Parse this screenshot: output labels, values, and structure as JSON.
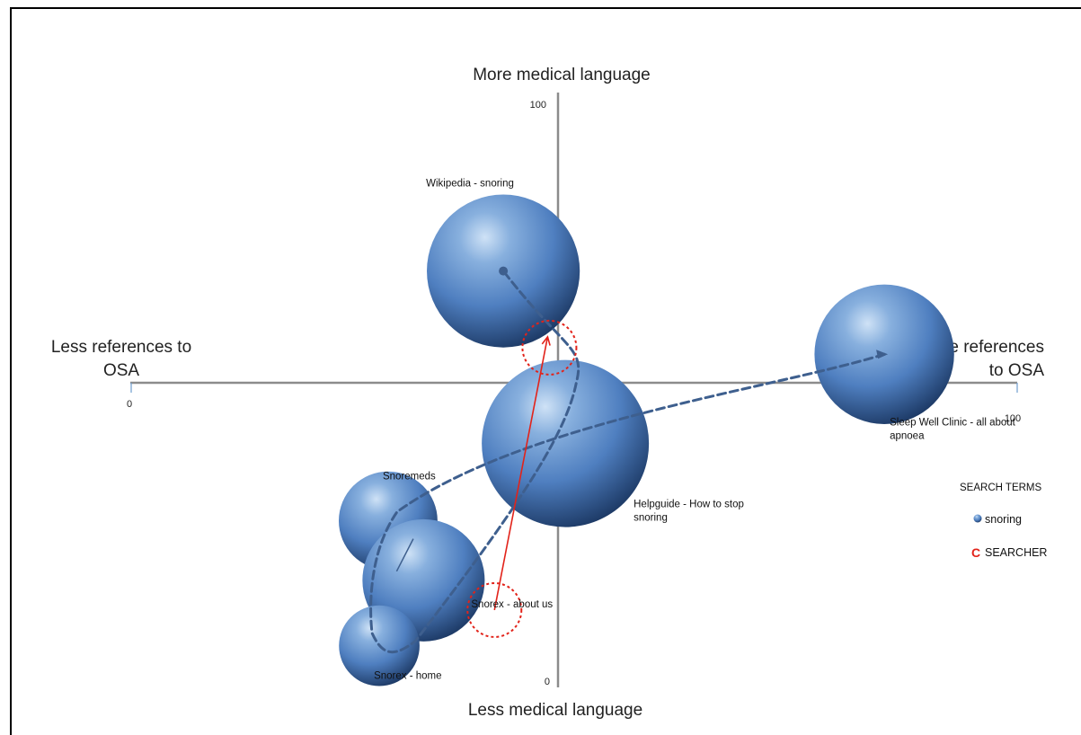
{
  "chart_data": {
    "type": "bubble",
    "x_axis": {
      "label_left": [
        "Less references to",
        "OSA"
      ],
      "label_right": [
        "More references",
        "to OSA"
      ],
      "min": 0,
      "max": 100,
      "tick_min": "0",
      "tick_max": "100"
    },
    "y_axis": {
      "label_top": "More medical language",
      "label_bottom": "Less medical  language",
      "min": 0,
      "max": 100,
      "tick_min": "0",
      "tick_max": "100"
    },
    "bubbles": [
      {
        "label": [
          "Wikipedia - snoring"
        ],
        "x": 42,
        "y": 70,
        "size": 72
      },
      {
        "label": [
          "Sleep Well Clinic - all about",
          "apnoea"
        ],
        "x": 85,
        "y": 56,
        "size": 60
      },
      {
        "label": [
          "Helpguide - How to stop",
          "snoring"
        ],
        "x": 49,
        "y": 41,
        "size": 86
      },
      {
        "label": [
          "Snoremeds"
        ],
        "x": 29,
        "y": 28,
        "size": 30
      },
      {
        "label": [
          "Snorex - about us"
        ],
        "x": 33,
        "y": 18,
        "size": 46
      },
      {
        "label": [
          "Snorex - home"
        ],
        "x": 28,
        "y": 7,
        "size": 20
      }
    ],
    "path_order": [
      "Sleep Well Clinic - all about",
      "Snoremeds",
      "Snorex - home",
      "Snorex - about us",
      "Wikipedia - snoring"
    ],
    "searcher": {
      "from": {
        "x": 41,
        "y": 13
      },
      "to": {
        "x": 47,
        "y": 55
      }
    },
    "legend": {
      "title": "SEARCH TERMS",
      "items": [
        {
          "marker": "blue-dot",
          "label": "snoring"
        },
        {
          "marker": "C",
          "label": "SEARCHER"
        }
      ]
    },
    "colors": {
      "bubble": "#4f7fc0",
      "path": "#3e5f8e",
      "searcher": "#e2231a",
      "axis": "#8c8c8c"
    }
  }
}
